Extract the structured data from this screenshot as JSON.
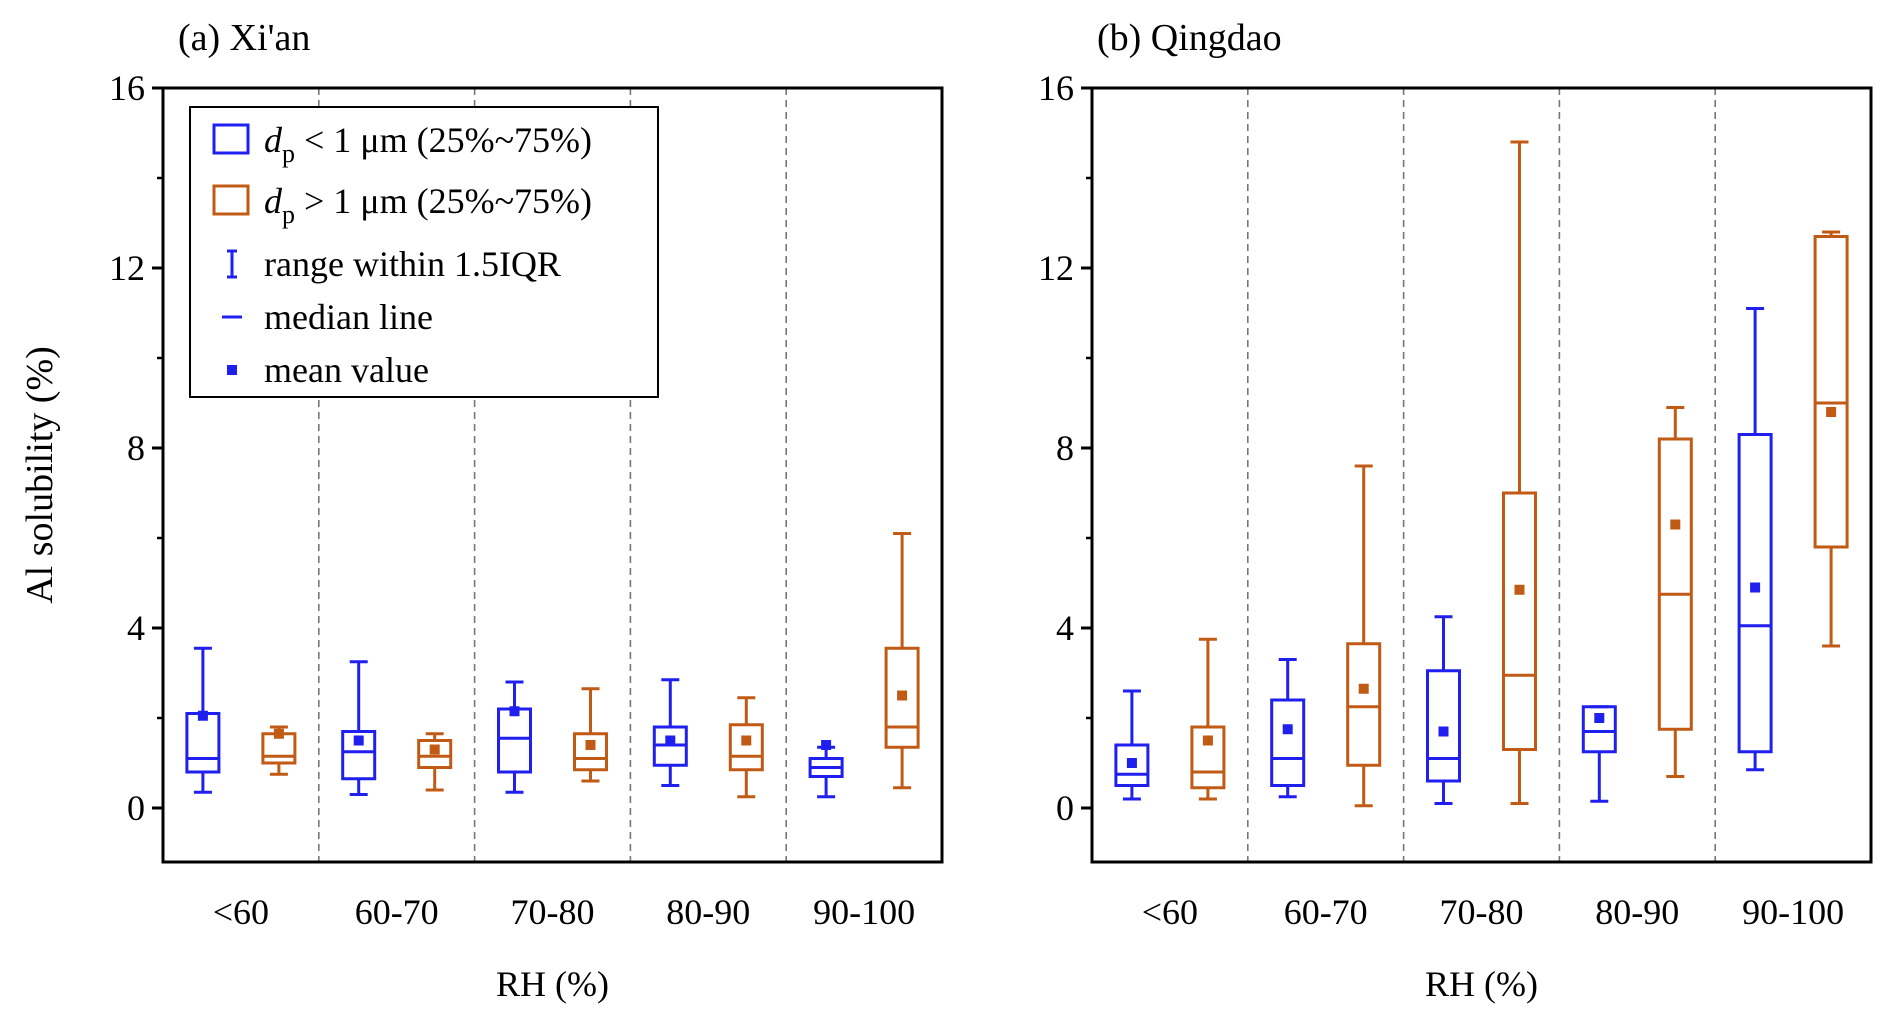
{
  "chart_data": [
    {
      "type": "box",
      "title": "(a) Xi'an",
      "xlabel": "RH (%)",
      "ylabel": "Al solubility (%)",
      "ylim": [
        -1.2,
        16
      ],
      "yticks": [
        "0",
        "4",
        "8",
        "12",
        "16"
      ],
      "categories": [
        "<60",
        "60-70",
        "70-80",
        "80-90",
        "90-100"
      ],
      "series": [
        {
          "color": "#1f1fef",
          "boxes": [
            {
              "whisker_low": 0.35,
              "q1": 0.8,
              "median": 1.1,
              "q3": 2.1,
              "whisker_high": 3.55,
              "mean": 2.05
            },
            {
              "whisker_low": 0.3,
              "q1": 0.65,
              "median": 1.25,
              "q3": 1.7,
              "whisker_high": 3.25,
              "mean": 1.5
            },
            {
              "whisker_low": 0.35,
              "q1": 0.8,
              "median": 1.55,
              "q3": 2.2,
              "whisker_high": 2.8,
              "mean": 2.15
            },
            {
              "whisker_low": 0.5,
              "q1": 0.95,
              "median": 1.4,
              "q3": 1.8,
              "whisker_high": 2.85,
              "mean": 1.5
            },
            {
              "whisker_low": 0.25,
              "q1": 0.7,
              "median": 0.9,
              "q3": 1.1,
              "whisker_high": 1.35,
              "mean": 1.4
            }
          ]
        },
        {
          "color": "#c05a14",
          "boxes": [
            {
              "whisker_low": 0.75,
              "q1": 1.0,
              "median": 1.15,
              "q3": 1.65,
              "whisker_high": 1.8,
              "mean": 1.65
            },
            {
              "whisker_low": 0.4,
              "q1": 0.9,
              "median": 1.15,
              "q3": 1.5,
              "whisker_high": 1.65,
              "mean": 1.3
            },
            {
              "whisker_low": 0.6,
              "q1": 0.85,
              "median": 1.1,
              "q3": 1.65,
              "whisker_high": 2.65,
              "mean": 1.4
            },
            {
              "whisker_low": 0.25,
              "q1": 0.85,
              "median": 1.15,
              "q3": 1.85,
              "whisker_high": 2.45,
              "mean": 1.5
            },
            {
              "whisker_low": 0.45,
              "q1": 1.35,
              "median": 1.8,
              "q3": 3.55,
              "whisker_high": 6.1,
              "mean": 2.5
            }
          ]
        }
      ]
    },
    {
      "type": "box",
      "title": "(b) Qingdao",
      "xlabel": "RH (%)",
      "ylabel": "",
      "ylim": [
        -1.2,
        16
      ],
      "yticks": [
        "0",
        "4",
        "8",
        "12",
        "16"
      ],
      "categories": [
        "<60",
        "60-70",
        "70-80",
        "80-90",
        "90-100"
      ],
      "series": [
        {
          "color": "#1f1fef",
          "boxes": [
            {
              "whisker_low": 0.2,
              "q1": 0.5,
              "median": 0.75,
              "q3": 1.4,
              "whisker_high": 2.6,
              "mean": 1.0
            },
            {
              "whisker_low": 0.25,
              "q1": 0.5,
              "median": 1.1,
              "q3": 2.4,
              "whisker_high": 3.3,
              "mean": 1.75
            },
            {
              "whisker_low": 0.1,
              "q1": 0.6,
              "median": 1.1,
              "q3": 3.05,
              "whisker_high": 4.25,
              "mean": 1.7
            },
            {
              "whisker_low": 0.15,
              "q1": 1.25,
              "median": 1.7,
              "q3": 2.25,
              "whisker_high": 2.25,
              "mean": 2.0
            },
            {
              "whisker_low": 0.85,
              "q1": 1.25,
              "median": 4.05,
              "q3": 8.3,
              "whisker_high": 11.1,
              "mean": 4.9
            }
          ]
        },
        {
          "color": "#c05a14",
          "boxes": [
            {
              "whisker_low": 0.2,
              "q1": 0.45,
              "median": 0.8,
              "q3": 1.8,
              "whisker_high": 3.75,
              "mean": 1.5
            },
            {
              "whisker_low": 0.05,
              "q1": 0.95,
              "median": 2.25,
              "q3": 3.65,
              "whisker_high": 7.6,
              "mean": 2.65
            },
            {
              "whisker_low": 0.1,
              "q1": 1.3,
              "median": 2.95,
              "q3": 7.0,
              "whisker_high": 14.8,
              "mean": 4.85
            },
            {
              "whisker_low": 0.7,
              "q1": 1.75,
              "median": 4.75,
              "q3": 8.2,
              "whisker_high": 8.9,
              "mean": 6.3
            },
            {
              "whisker_low": 3.6,
              "q1": 5.8,
              "median": 9.0,
              "q3": 12.7,
              "whisker_high": 12.8,
              "mean": 8.8
            }
          ]
        }
      ]
    }
  ],
  "legend": {
    "position": "top-left of panel (a)",
    "items": [
      {
        "symbol": "box",
        "color": "#1f1fef",
        "text_d": "d",
        "text_sub": "p",
        "text_rest": " < 1 μm (25%~75%)"
      },
      {
        "symbol": "box",
        "color": "#c05a14",
        "text_d": "d",
        "text_sub": "p",
        "text_rest": " > 1 μm (25%~75%)"
      },
      {
        "symbol": "whisker",
        "color": "#1f1fef",
        "text": "range within 1.5IQR"
      },
      {
        "symbol": "median",
        "color": "#1f1fef",
        "text": "median line"
      },
      {
        "symbol": "mean",
        "color": "#1f1fef",
        "text": "mean value"
      }
    ]
  }
}
